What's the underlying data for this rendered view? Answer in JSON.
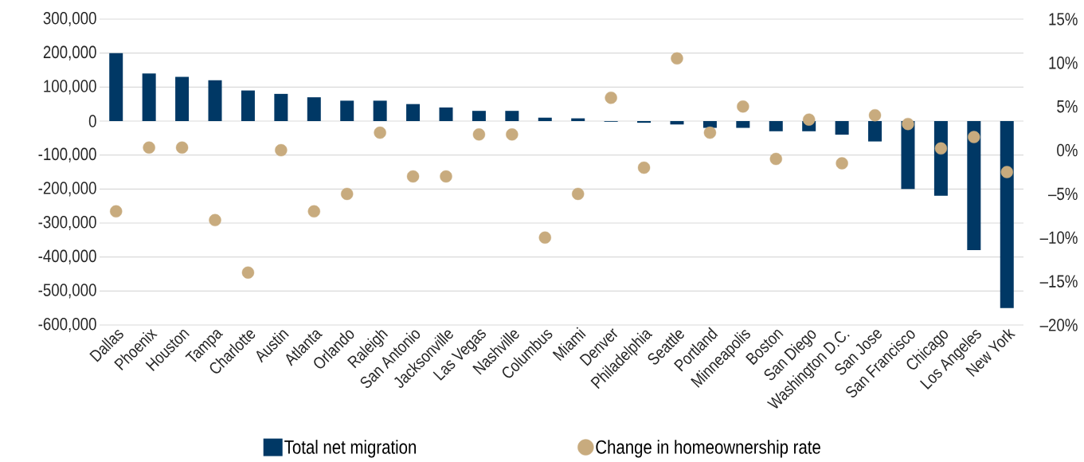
{
  "chart_data": {
    "type": "bar",
    "categories": [
      "Dallas",
      "Phoenix",
      "Houston",
      "Tampa",
      "Charlotte",
      "Austin",
      "Atlanta",
      "Orlando",
      "Raleigh",
      "San Antonio",
      "Jacksonville",
      "Las Vegas",
      "Nashville",
      "Columbus",
      "Miami",
      "Denver",
      "Philadelphia",
      "Seattle",
      "Portland",
      "Minneapolis",
      "Boston",
      "San Diego",
      "Washington D.C.",
      "San Jose",
      "San Francisco",
      "Chicago",
      "Los Angeles",
      "New York"
    ],
    "series": [
      {
        "name": "Total net migration",
        "color": "#003865",
        "values": [
          200000,
          140000,
          130000,
          120000,
          90000,
          80000,
          70000,
          60000,
          60000,
          50000,
          40000,
          30000,
          30000,
          10000,
          8000,
          -2000,
          -5000,
          -10000,
          -20000,
          -20000,
          -30000,
          -30000,
          -40000,
          -60000,
          -200000,
          -220000,
          -380000,
          -550000
        ]
      },
      {
        "name": "Change in homeownership rate",
        "type": "scatter",
        "axis": "y2",
        "color": "#c8ab7e",
        "values": [
          -7,
          0.3,
          0.3,
          -8,
          -14,
          0,
          -7,
          -5,
          2,
          -3,
          -3,
          1.8,
          1.8,
          -10,
          -5,
          6,
          -2,
          10.5,
          2,
          5,
          -1,
          3.5,
          -1.5,
          4,
          3,
          0.2,
          1.5,
          -2.5
        ]
      }
    ],
    "ylim": [
      -600000,
      300000
    ],
    "yticks": [
      {
        "value": -600000,
        "label": "-600,000"
      },
      {
        "value": -500000,
        "label": "-500,000"
      },
      {
        "value": -400000,
        "label": "-400,000"
      },
      {
        "value": -300000,
        "label": "-300,000"
      },
      {
        "value": -200000,
        "label": "-200,000"
      },
      {
        "value": -100000,
        "label": "-100,000"
      },
      {
        "value": 0,
        "label": "0"
      },
      {
        "value": 100000,
        "label": "100,000"
      },
      {
        "value": 200000,
        "label": "200,000"
      },
      {
        "value": 300000,
        "label": "300,000"
      }
    ],
    "y2lim": [
      -20,
      15
    ],
    "y2ticks": [
      {
        "value": -20,
        "label": "–20%"
      },
      {
        "value": -15,
        "label": "–15%"
      },
      {
        "value": -10,
        "label": "–10%"
      },
      {
        "value": -5,
        "label": "–5%"
      },
      {
        "value": 0,
        "label": "0%"
      },
      {
        "value": 5,
        "label": "5%"
      },
      {
        "value": 10,
        "label": "10%"
      },
      {
        "value": 15,
        "label": "15%"
      }
    ],
    "grid": "y",
    "legend": "bottom"
  }
}
